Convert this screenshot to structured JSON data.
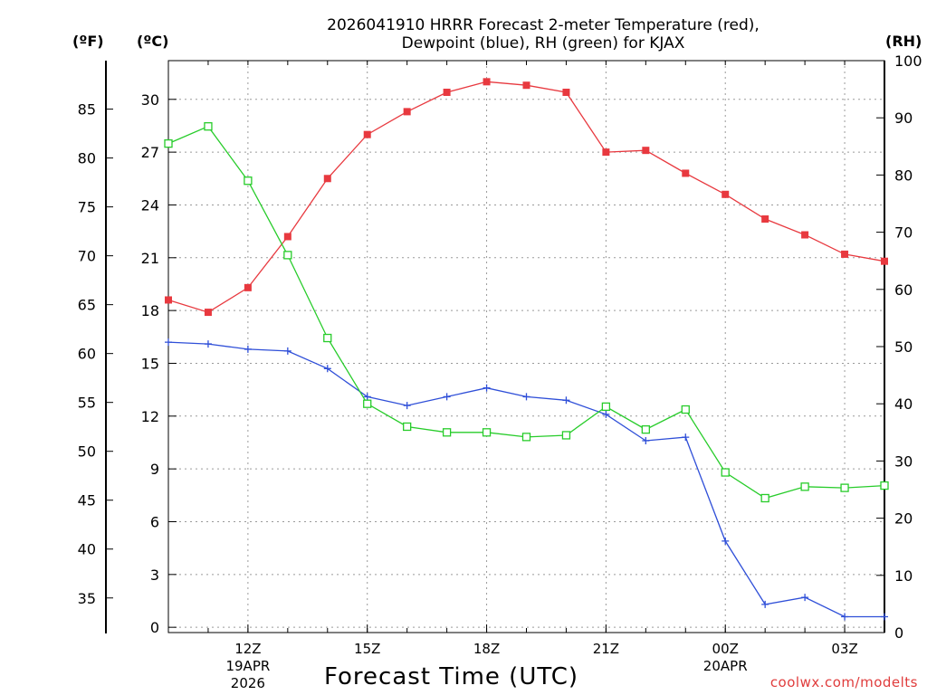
{
  "chart_data": {
    "type": "line",
    "title_line1": "2026041910 HRRR Forecast 2-meter Temperature (red),",
    "title_line2": "Dewpoint (blue), RH (green) for KJAX",
    "xlabel": "Forecast Time (UTC)",
    "unit_f": "(ºF)",
    "unit_c": "(ºC)",
    "unit_rh": "(RH)",
    "credit": "coolwx.com/modelts",
    "x_hours": [
      10,
      11,
      12,
      13,
      14,
      15,
      16,
      17,
      18,
      19,
      20,
      21,
      22,
      23,
      24,
      25,
      26,
      27,
      28
    ],
    "x_ticks": [
      {
        "hour": 12,
        "label": "12Z",
        "sub1": "19APR",
        "sub2": "2026"
      },
      {
        "hour": 15,
        "label": "15Z",
        "sub1": "",
        "sub2": ""
      },
      {
        "hour": 18,
        "label": "18Z",
        "sub1": "",
        "sub2": ""
      },
      {
        "hour": 21,
        "label": "21Z",
        "sub1": "",
        "sub2": ""
      },
      {
        "hour": 24,
        "label": "00Z",
        "sub1": "20APR",
        "sub2": ""
      },
      {
        "hour": 27,
        "label": "03Z",
        "sub1": "",
        "sub2": ""
      }
    ],
    "ylim_c": [
      -0.3,
      32.2
    ],
    "ylim_rh": [
      0,
      100
    ],
    "c_ticks": [
      "0",
      "3",
      "6",
      "9",
      "12",
      "15",
      "18",
      "21",
      "24",
      "27",
      "30"
    ],
    "f_ticks": [
      "35",
      "40",
      "45",
      "50",
      "55",
      "60",
      "65",
      "70",
      "75",
      "80",
      "85"
    ],
    "rh_ticks": [
      "0",
      "10",
      "20",
      "30",
      "40",
      "50",
      "60",
      "70",
      "80",
      "90",
      "100"
    ],
    "series": [
      {
        "name": "Temperature",
        "unit": "C",
        "color": "#e8393f",
        "marker": "filled-square",
        "values": [
          18.6,
          17.9,
          19.3,
          22.2,
          25.5,
          28.0,
          29.3,
          30.4,
          31.0,
          30.8,
          30.4,
          27.0,
          27.1,
          25.8,
          24.6,
          23.2,
          22.3,
          21.2,
          20.8
        ]
      },
      {
        "name": "Dewpoint",
        "unit": "C",
        "color": "#2f4fd8",
        "marker": "plus",
        "values": [
          16.2,
          16.1,
          15.8,
          15.7,
          14.7,
          13.1,
          12.6,
          13.1,
          13.6,
          13.1,
          12.9,
          12.1,
          10.6,
          10.8,
          4.9,
          1.3,
          1.7,
          0.6,
          0.6
        ]
      },
      {
        "name": "RH",
        "unit": "%",
        "color": "#27cc2a",
        "marker": "open-square",
        "values": [
          85.5,
          88.5,
          79.0,
          66.0,
          51.5,
          40.0,
          36.0,
          35.0,
          35.0,
          34.2,
          34.5,
          39.5,
          35.5,
          39.0,
          28.0,
          23.5,
          25.5,
          25.3,
          25.7
        ]
      }
    ]
  }
}
